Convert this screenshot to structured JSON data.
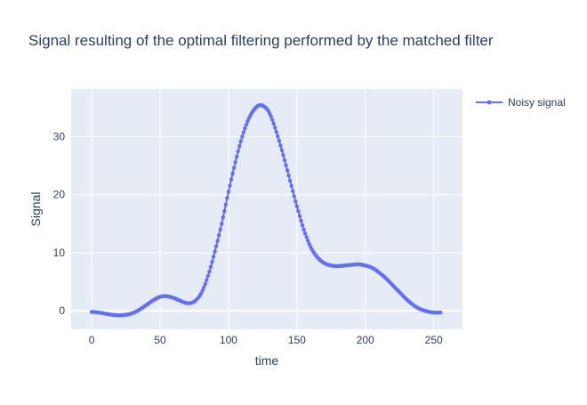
{
  "chart_data": {
    "type": "line",
    "title": "Signal resulting of the optimal filtering performed by the matched filter",
    "xlabel": "time",
    "ylabel": "Signal",
    "xlim": [
      -15,
      271
    ],
    "ylim": [
      -3.2,
      38.2
    ],
    "x_ticks": [
      0,
      50,
      100,
      150,
      200,
      250
    ],
    "y_ticks": [
      0,
      10,
      20,
      30
    ],
    "grid": true,
    "legend_position": "top-right",
    "series": [
      {
        "name": "Noisy signal",
        "color": "#636efa",
        "mode": "lines+markers",
        "x_range": [
          0,
          255
        ],
        "anchors": [
          [
            0,
            -0.2
          ],
          [
            5,
            -0.3
          ],
          [
            10,
            -0.5
          ],
          [
            15,
            -0.7
          ],
          [
            20,
            -0.8
          ],
          [
            25,
            -0.7
          ],
          [
            30,
            -0.4
          ],
          [
            35,
            0.2
          ],
          [
            40,
            1.0
          ],
          [
            45,
            1.8
          ],
          [
            50,
            2.4
          ],
          [
            55,
            2.5
          ],
          [
            60,
            2.2
          ],
          [
            65,
            1.7
          ],
          [
            70,
            1.3
          ],
          [
            75,
            1.6
          ],
          [
            80,
            3.0
          ],
          [
            85,
            6.0
          ],
          [
            90,
            10.2
          ],
          [
            95,
            15.0
          ],
          [
            100,
            20.5
          ],
          [
            105,
            25.6
          ],
          [
            110,
            30.0
          ],
          [
            115,
            33.2
          ],
          [
            120,
            35.0
          ],
          [
            123,
            35.4
          ],
          [
            126,
            35.2
          ],
          [
            130,
            34.0
          ],
          [
            135,
            30.8
          ],
          [
            140,
            26.8
          ],
          [
            145,
            22.4
          ],
          [
            150,
            18.0
          ],
          [
            155,
            14.0
          ],
          [
            160,
            11.0
          ],
          [
            165,
            9.2
          ],
          [
            170,
            8.2
          ],
          [
            175,
            7.8
          ],
          [
            180,
            7.7
          ],
          [
            185,
            7.8
          ],
          [
            190,
            7.9
          ],
          [
            195,
            8.0
          ],
          [
            200,
            7.8
          ],
          [
            205,
            7.4
          ],
          [
            210,
            6.6
          ],
          [
            215,
            5.6
          ],
          [
            220,
            4.4
          ],
          [
            225,
            3.2
          ],
          [
            230,
            2.0
          ],
          [
            235,
            1.0
          ],
          [
            240,
            0.3
          ],
          [
            245,
            -0.1
          ],
          [
            250,
            -0.3
          ],
          [
            255,
            -0.3
          ]
        ]
      }
    ]
  }
}
